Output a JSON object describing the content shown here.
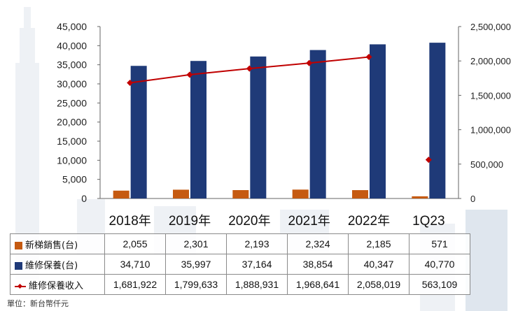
{
  "chart_data": {
    "type": "bar",
    "categories": [
      "2018年",
      "2019年",
      "2020年",
      "2021年",
      "2022年",
      "1Q23"
    ],
    "series": [
      {
        "name": "新梯銷售(台)",
        "type": "bar",
        "axis": "left",
        "color": "#c55a11",
        "values": [
          2055,
          2301,
          2193,
          2324,
          2185,
          571
        ]
      },
      {
        "name": "維修保養(台)",
        "type": "bar",
        "axis": "left",
        "color": "#1f3a78",
        "values": [
          34710,
          35997,
          37164,
          38854,
          40347,
          40770
        ]
      },
      {
        "name": "維修保養收入",
        "type": "line",
        "axis": "right",
        "color": "#c00000",
        "values": [
          1681922,
          1799633,
          1888931,
          1968641,
          2058019,
          563109
        ]
      }
    ],
    "table_values": {
      "new_sales": [
        "2,055",
        "2,301",
        "2,193",
        "2,324",
        "2,185",
        "571"
      ],
      "maintenance_units": [
        "34,710",
        "35,997",
        "37,164",
        "38,854",
        "40,347",
        "40,770"
      ],
      "maintenance_revenue": [
        "1,681,922",
        "1,799,633",
        "1,888,931",
        "1,968,641",
        "2,058,019",
        "563,109"
      ]
    },
    "ylim_left": [
      0,
      45000
    ],
    "yticks_left": [
      "0",
      "5,000",
      "10,000",
      "15,000",
      "20,000",
      "25,000",
      "30,000",
      "35,000",
      "40,000",
      "45,000"
    ],
    "ylim_right": [
      0,
      2500000
    ],
    "yticks_right": [
      "0",
      "500,000",
      "1,000,000",
      "1,500,000",
      "2,000,000",
      "2,500,000"
    ],
    "line_connected_points": 5,
    "grid": false
  },
  "legend": {
    "new_sales": "新梯銷售(台)",
    "maintenance_units": "維修保養(台)",
    "maintenance_revenue": "維修保養收入"
  },
  "unit_note": "單位：新台幣仟元",
  "colors": {
    "orange": "#c55a11",
    "navy": "#1f3a78",
    "red": "#c00000"
  }
}
